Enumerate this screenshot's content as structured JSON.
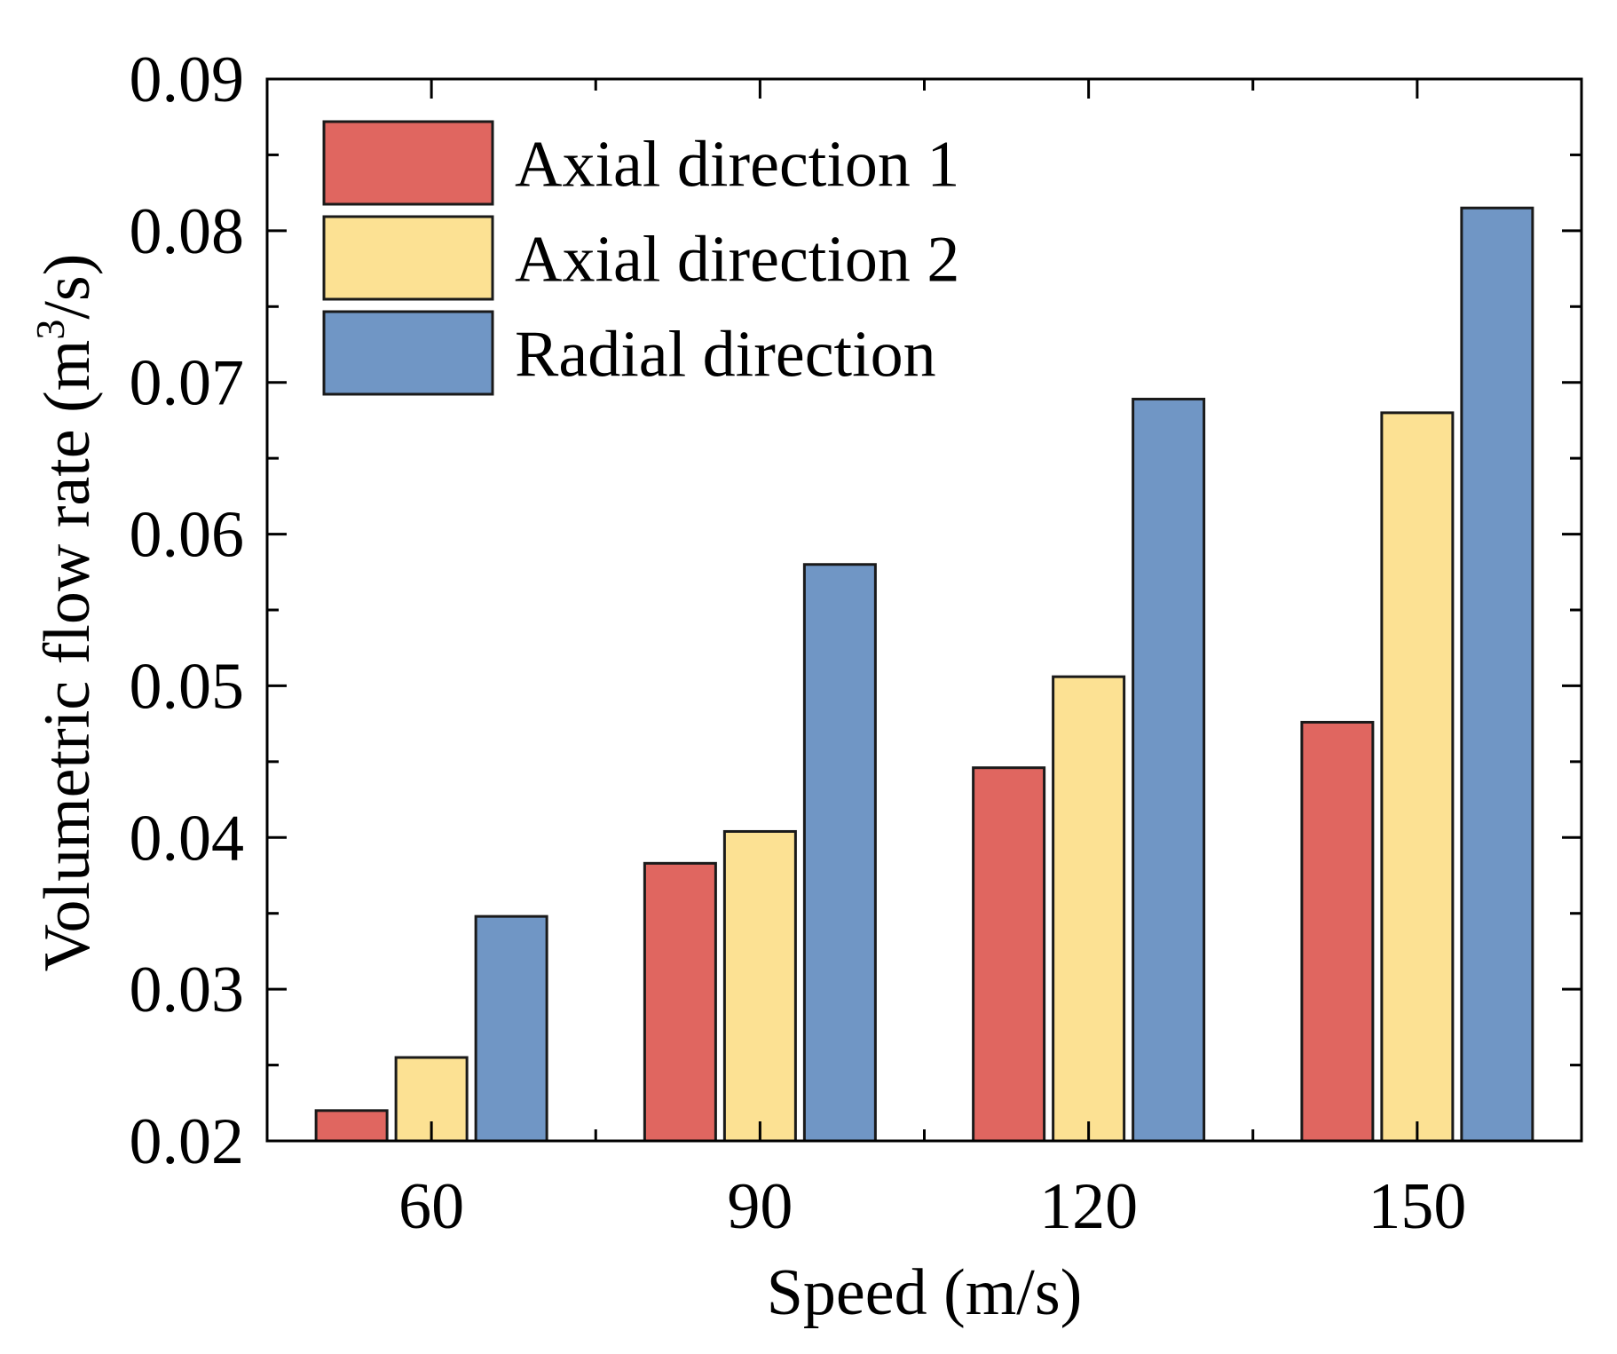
{
  "chart_data": {
    "type": "bar",
    "title": "",
    "xlabel": "Speed (m/s)",
    "ylabel": {
      "prefix": "Volumetric flow rate (m",
      "superscript": "3",
      "suffix": "/s)"
    },
    "categories": [
      "60",
      "90",
      "120",
      "150"
    ],
    "ylim": [
      0.02,
      0.09
    ],
    "yticks": [
      0.02,
      0.03,
      0.04,
      0.05,
      0.06,
      0.07,
      0.08,
      0.09
    ],
    "ytick_labels": [
      "0.02",
      "0.03",
      "0.04",
      "0.05",
      "0.06",
      "0.07",
      "0.08",
      "0.09"
    ],
    "series": [
      {
        "name": "Axial direction 1",
        "color": "#e06660",
        "values": [
          0.022,
          0.0383,
          0.0446,
          0.0476
        ]
      },
      {
        "name": "Axial direction 2",
        "color": "#fce193",
        "values": [
          0.0255,
          0.0404,
          0.0506,
          0.068
        ]
      },
      {
        "name": "Radial direction",
        "color": "#7096c5",
        "values": [
          0.0348,
          0.058,
          0.0689,
          0.0815
        ]
      }
    ],
    "legend_position": "top-left",
    "grid": false
  }
}
